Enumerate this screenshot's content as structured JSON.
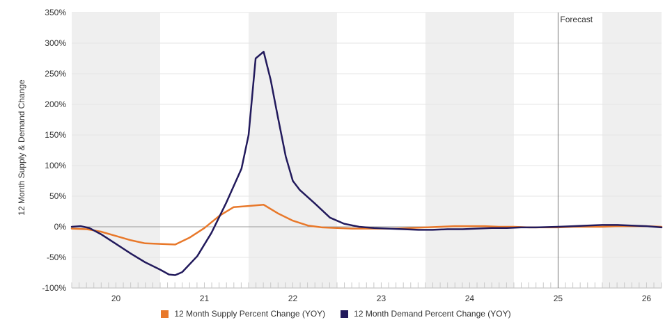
{
  "chart_data": {
    "type": "line",
    "ylabel": "12 Month Supply & Demand Change",
    "ylim": [
      -100,
      350
    ],
    "y_ticks": [
      "-100%",
      "-50%",
      "0%",
      "50%",
      "100%",
      "150%",
      "200%",
      "250%",
      "300%",
      "350%"
    ],
    "x_range": [
      19.5,
      26.17
    ],
    "x_ticks": [
      "20",
      "21",
      "22",
      "23",
      "24",
      "25",
      "26"
    ],
    "shaded_years": [
      20,
      22,
      24,
      26
    ],
    "forecast": {
      "label": "Forecast",
      "x": 25.0
    },
    "grid": true,
    "legend_position": "bottom",
    "colors": {
      "supply": "#e8782a",
      "demand": "#221a5c",
      "shade": "#efefef",
      "grid": "#e4e4e4",
      "forecast_line": "#777777"
    },
    "series": [
      {
        "name": "12 Month Supply Percent Change (YOY)",
        "key": "supply",
        "points": [
          [
            19.5,
            -3
          ],
          [
            19.67,
            -4
          ],
          [
            19.83,
            -8
          ],
          [
            20.0,
            -15
          ],
          [
            20.17,
            -22
          ],
          [
            20.33,
            -27
          ],
          [
            20.5,
            -28
          ],
          [
            20.67,
            -29
          ],
          [
            20.83,
            -18
          ],
          [
            21.0,
            -2
          ],
          [
            21.17,
            18
          ],
          [
            21.33,
            32
          ],
          [
            21.5,
            34
          ],
          [
            21.67,
            36
          ],
          [
            21.83,
            22
          ],
          [
            22.0,
            10
          ],
          [
            22.17,
            2
          ],
          [
            22.33,
            -1
          ],
          [
            22.5,
            -2
          ],
          [
            22.67,
            -3
          ],
          [
            22.83,
            -3
          ],
          [
            23.0,
            -3
          ],
          [
            23.17,
            -3
          ],
          [
            23.33,
            -2
          ],
          [
            23.5,
            -1
          ],
          [
            23.67,
            0
          ],
          [
            23.83,
            1
          ],
          [
            24.0,
            1
          ],
          [
            24.17,
            1
          ],
          [
            24.33,
            0
          ],
          [
            24.5,
            0
          ],
          [
            24.67,
            -1
          ],
          [
            24.83,
            -1
          ],
          [
            25.0,
            -1
          ],
          [
            25.17,
            0
          ],
          [
            25.33,
            0
          ],
          [
            25.5,
            0
          ],
          [
            25.67,
            1
          ],
          [
            25.83,
            1
          ],
          [
            26.0,
            1
          ],
          [
            26.17,
            0
          ]
        ]
      },
      {
        "name": "12 Month Demand Percent Change (YOY)",
        "key": "demand",
        "points": [
          [
            19.5,
            0
          ],
          [
            19.6,
            1
          ],
          [
            19.7,
            -2
          ],
          [
            19.83,
            -12
          ],
          [
            20.0,
            -28
          ],
          [
            20.17,
            -44
          ],
          [
            20.33,
            -58
          ],
          [
            20.5,
            -70
          ],
          [
            20.6,
            -78
          ],
          [
            20.67,
            -79
          ],
          [
            20.75,
            -74
          ],
          [
            20.92,
            -48
          ],
          [
            21.08,
            -10
          ],
          [
            21.25,
            40
          ],
          [
            21.42,
            95
          ],
          [
            21.5,
            150
          ],
          [
            21.58,
            275
          ],
          [
            21.67,
            286
          ],
          [
            21.75,
            240
          ],
          [
            21.83,
            180
          ],
          [
            21.92,
            115
          ],
          [
            22.0,
            75
          ],
          [
            22.08,
            60
          ],
          [
            22.25,
            38
          ],
          [
            22.42,
            15
          ],
          [
            22.58,
            5
          ],
          [
            22.75,
            0
          ],
          [
            22.92,
            -2
          ],
          [
            23.08,
            -3
          ],
          [
            23.25,
            -4
          ],
          [
            23.42,
            -5
          ],
          [
            23.58,
            -5
          ],
          [
            23.75,
            -4
          ],
          [
            23.92,
            -4
          ],
          [
            24.08,
            -3
          ],
          [
            24.25,
            -2
          ],
          [
            24.42,
            -2
          ],
          [
            24.58,
            -1
          ],
          [
            24.75,
            -1
          ],
          [
            25.0,
            0
          ],
          [
            25.17,
            1
          ],
          [
            25.33,
            2
          ],
          [
            25.5,
            3
          ],
          [
            25.67,
            3
          ],
          [
            25.83,
            2
          ],
          [
            26.0,
            1
          ],
          [
            26.17,
            -1
          ]
        ]
      }
    ]
  }
}
